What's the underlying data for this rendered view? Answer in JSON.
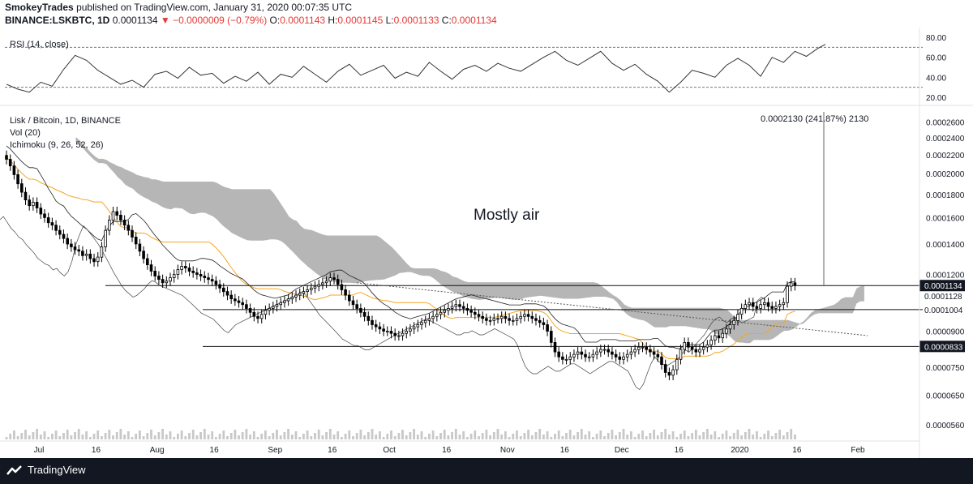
{
  "header": {
    "author": "SmokeyTrades",
    "published_text": "published on TradingView.com, January 31, 2020 00:07:35 UTC",
    "symbol": "BINANCE:LSKBTC, 1D",
    "price": "0.0001134",
    "change": "−0.0000009 (−0.79%)",
    "o_label": "O:",
    "o_value": "0.0001143",
    "h_label": "H:",
    "h_value": "0.0001145",
    "l_label": "L:",
    "l_value": "0.0001133",
    "c_label": "C:",
    "c_value": "0.0001134"
  },
  "footer": {
    "brand": "TradingView"
  },
  "colors": {
    "candle": "#000000",
    "cloud": "#9e9e9e",
    "orange": "#f5a623",
    "grid": "#888888",
    "axis": "#131722"
  },
  "chart_data": [
    {
      "type": "line",
      "title": "RSI (14, close)",
      "y_ticks": [
        "80.00",
        "60.00",
        "40.00",
        "20.00"
      ],
      "ylim": [
        15,
        85
      ],
      "levels": [
        70,
        30
      ],
      "x": [
        0,
        3,
        6,
        9,
        12,
        15,
        18,
        21,
        24,
        27,
        30,
        33,
        36,
        39,
        42,
        45,
        48,
        51,
        54,
        57,
        60,
        63,
        66,
        69,
        72,
        75,
        78,
        81,
        84,
        87,
        90,
        93,
        96,
        99,
        102,
        105,
        108,
        111,
        114,
        117,
        120,
        123,
        126,
        129,
        132,
        135,
        138,
        141,
        144,
        147,
        150,
        153,
        156,
        159,
        162,
        165,
        168,
        171,
        174,
        177,
        180,
        183,
        186,
        189,
        192,
        195,
        198,
        201,
        204,
        207,
        210,
        213,
        215
      ],
      "values": [
        33,
        28,
        25,
        35,
        31,
        48,
        62,
        57,
        47,
        40,
        33,
        37,
        30,
        43,
        46,
        39,
        50,
        42,
        44,
        34,
        41,
        36,
        45,
        33,
        43,
        40,
        51,
        43,
        35,
        46,
        53,
        42,
        47,
        52,
        39,
        45,
        41,
        55,
        46,
        38,
        48,
        52,
        46,
        54,
        49,
        46,
        53,
        60,
        66,
        57,
        52,
        59,
        66,
        54,
        47,
        53,
        43,
        36,
        25,
        35,
        47,
        44,
        40,
        52,
        59,
        52,
        41,
        60,
        55,
        66,
        61,
        69,
        73
      ]
    },
    {
      "type": "candlestick",
      "title": "Lisk / Bitcoin, 1D, BINANCE",
      "indicators": [
        "Vol (20)",
        "Ichimoku (9, 26, 52, 26)"
      ],
      "annotation": "Mostly air",
      "measure_label": "0.0002130 (241.87%) 2130",
      "y_ticks": [
        "0.0002600",
        "0.0002400",
        "0.0002200",
        "0.0002000",
        "0.0001800",
        "0.0001600",
        "0.0001400",
        "0.0001200",
        "0.0001000",
        "0.0000900",
        "0.0000750",
        "0.0000650",
        "0.0000560"
      ],
      "price_labels": [
        {
          "text": "0.0001134",
          "style": "dark"
        },
        {
          "text": "0.0001128",
          "style": "plain"
        },
        {
          "text": "0.0001004",
          "style": "plain"
        },
        {
          "text": "0.0000833",
          "style": "dark"
        }
      ],
      "x_ticks": [
        "Jul",
        "16",
        "Aug",
        "16",
        "Sep",
        "16",
        "Oct",
        "16",
        "Nov",
        "16",
        "Dec",
        "16",
        "2020",
        "16",
        "Feb"
      ],
      "x_tick_days": [
        0,
        15,
        31,
        46,
        62,
        77,
        92,
        107,
        123,
        138,
        153,
        168,
        184,
        199,
        215
      ],
      "start_date": "2019-07-01",
      "ylim": [
        5.2e-05,
        0.000278
      ],
      "horizontal_levels": [
        0.0001134,
        0.0001004,
        8.33e-05
      ],
      "close": [
        0.000215,
        0.000208,
        0.000199,
        0.00019,
        0.000182,
        0.000175,
        0.00017,
        0.000173,
        0.000168,
        0.000163,
        0.00016,
        0.000156,
        0.000154,
        0.00015,
        0.000147,
        0.000144,
        0.00014,
        0.000138,
        0.000136,
        0.000135,
        0.000132,
        0.000133,
        0.00013,
        0.000128,
        0.000131,
        0.000138,
        0.00015,
        0.000158,
        0.000165,
        0.000162,
        0.000158,
        0.000154,
        0.00015,
        0.000145,
        0.00014,
        0.000135,
        0.00013,
        0.000126,
        0.000122,
        0.000119,
        0.000117,
        0.000115,
        0.000116,
        0.000118,
        0.00012,
        0.000123,
        0.000125,
        0.000124,
        0.000122,
        0.000121,
        0.00012,
        0.000119,
        0.000118,
        0.000117,
        0.000116,
        0.000114,
        0.000112,
        0.00011,
        0.000108,
        0.000106,
        0.000105,
        0.000104,
        0.000103,
        0.000101,
        9.9e-05,
        9.7e-05,
        9.6e-05,
        9.8e-05,
        0.0001,
        0.000101,
        0.000102,
        0.000103,
        0.000104,
        0.000105,
        0.000106,
        0.000107,
        0.000108,
        0.000109,
        0.00011,
        0.000111,
        0.000112,
        0.000113,
        0.000114,
        0.000115,
        0.000116,
        0.000118,
        0.000117,
        0.000114,
        0.000111,
        0.000108,
        0.000105,
        0.000103,
        0.000101,
        9.9e-05,
        9.7e-05,
        9.5e-05,
        9.3e-05,
        9.2e-05,
        9.1e-05,
        9e-05,
        9e-05,
        8.9e-05,
        8.8e-05,
        8.8e-05,
        8.9e-05,
        9e-05,
        9.1e-05,
        9.2e-05,
        9.3e-05,
        9.4e-05,
        9.5e-05,
        9.6e-05,
        9.7e-05,
        9.8e-05,
        9.9e-05,
        0.0001,
        0.000101,
        0.000102,
        0.000103,
        0.000102,
        0.000101,
        0.0001,
        9.9e-05,
        9.8e-05,
        9.7e-05,
        9.6e-05,
        9.5e-05,
        9.5e-05,
        9.6e-05,
        9.6e-05,
        9.7e-05,
        9.6e-05,
        9.5e-05,
        9.5e-05,
        9.6e-05,
        9.7e-05,
        9.8e-05,
        9.7e-05,
        9.6e-05,
        9.5e-05,
        9.4e-05,
        9.3e-05,
        9e-05,
        8.5e-05,
        8.1e-05,
        7.9e-05,
        7.8e-05,
        7.8e-05,
        7.9e-05,
        8e-05,
        8.1e-05,
        8e-05,
        7.9e-05,
        7.9e-05,
        8e-05,
        8.1e-05,
        8.2e-05,
        8.2e-05,
        8.1e-05,
        8e-05,
        7.9e-05,
        7.8e-05,
        7.9e-05,
        8e-05,
        8.1e-05,
        8.2e-05,
        8.3e-05,
        8.3e-05,
        8.2e-05,
        8.1e-05,
        8e-05,
        7.9e-05,
        7.6e-05,
        7.3e-05,
        7.2e-05,
        7.4e-05,
        7.8e-05,
        8.2e-05,
        8.5e-05,
        8.3e-05,
        8.2e-05,
        8.1e-05,
        8.2e-05,
        8.3e-05,
        8.4e-05,
        8.6e-05,
        8.8e-05,
        8.7e-05,
        8.9e-05,
        9.1e-05,
        9.3e-05,
        9.5e-05,
        9.8e-05,
        0.000101,
        0.000103,
        0.000104,
        0.000102,
        0.000101,
        0.000103,
        0.000104,
        0.000102,
        0.000101,
        0.000102,
        0.000103,
        0.000104,
        0.000113,
        0.000115,
        0.0001134
      ]
    }
  ]
}
